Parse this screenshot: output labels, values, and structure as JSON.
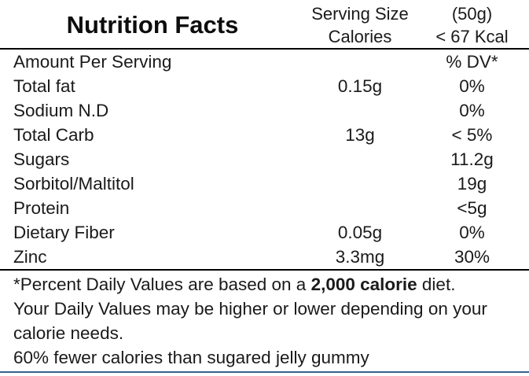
{
  "title": "Nutrition Facts",
  "header": {
    "rows": [
      {
        "label": "Serving Size",
        "value": "(50g)"
      },
      {
        "label": "Calories",
        "value": "< 67 Kcal"
      }
    ]
  },
  "table": {
    "rows": [
      {
        "name": "Amount Per Serving",
        "amount": "",
        "dv": "% DV*"
      },
      {
        "name": "Total fat",
        "amount": "0.15g",
        "dv": "0%"
      },
      {
        "name": "Sodium N.D",
        "amount": "",
        "dv": "0%"
      },
      {
        "name": "Total Carb",
        "amount": "13g",
        "dv": "< 5%"
      },
      {
        "name": "Sugars",
        "amount": "",
        "dv": "11.2g"
      },
      {
        "name": "Sorbitol/Maltitol",
        "amount": "",
        "dv": "19g"
      },
      {
        "name": "Protein",
        "amount": "",
        "dv": "<5g"
      },
      {
        "name": "Dietary Fiber",
        "amount": "0.05g",
        "dv": "0%"
      },
      {
        "name": "Zinc",
        "amount": "3.3mg",
        "dv": "30%"
      }
    ]
  },
  "footnote": {
    "line1_prefix": "*Percent Daily Values are based on a ",
    "line1_bold": "2,000 calorie",
    "line1_suffix": " diet.",
    "line2": "Your Daily Values may be higher or lower depending on your calorie needs.",
    "line3": "60% fewer calories than sugared jelly gummy"
  },
  "colors": {
    "text": "#1a1a1a",
    "divider": "#000000",
    "bottom_border": "#35618f"
  }
}
